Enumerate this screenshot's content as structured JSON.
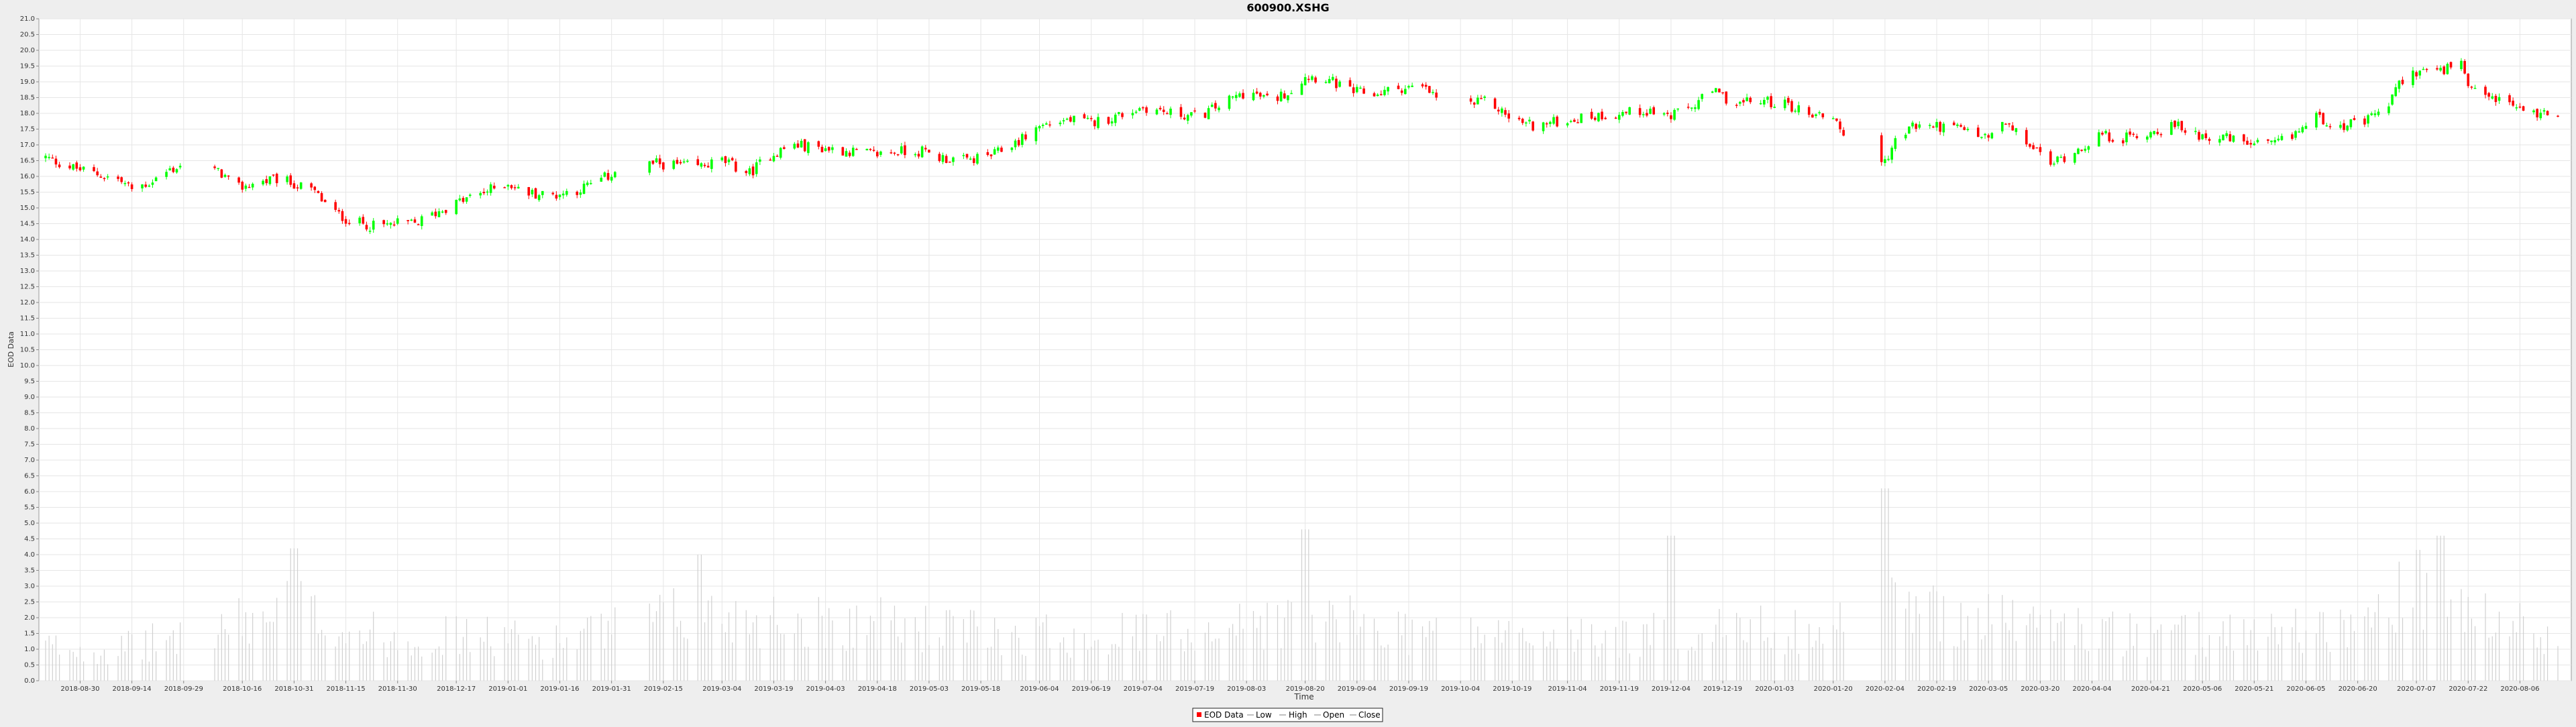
{
  "chart_data": {
    "type": "candlestick",
    "title": "600900.XSHG",
    "xlabel": "Time",
    "ylabel": "EOD Data",
    "ylim": [
      0,
      21
    ],
    "y_tick_step": 0.5,
    "x_range": [
      "2018-08-20",
      "2020-08-17"
    ],
    "x_ticks": [
      "2018-08-30",
      "2018-09-14",
      "2018-09-29",
      "2018-10-16",
      "2018-10-31",
      "2018-11-15",
      "2018-11-30",
      "2018-12-17",
      "2019-01-01",
      "2019-01-16",
      "2019-01-31",
      "2019-02-15",
      "2019-03-04",
      "2019-03-19",
      "2019-04-03",
      "2019-04-18",
      "2019-05-03",
      "2019-05-18",
      "2019-06-04",
      "2019-06-19",
      "2019-07-04",
      "2019-07-19",
      "2019-08-03",
      "2019-08-20",
      "2019-09-04",
      "2019-09-19",
      "2019-10-04",
      "2019-10-19",
      "2019-11-04",
      "2019-11-19",
      "2019-12-04",
      "2019-12-19",
      "2020-01-03",
      "2020-01-20",
      "2020-02-04",
      "2020-02-19",
      "2020-03-05",
      "2020-03-20",
      "2020-04-04",
      "2020-04-21",
      "2020-05-06",
      "2020-05-21",
      "2020-06-05",
      "2020-06-20",
      "2020-07-07",
      "2020-07-22",
      "2020-08-06"
    ],
    "close_path": [
      [
        "2018-08-20",
        16.6
      ],
      [
        "2018-08-27",
        16.3
      ],
      [
        "2018-09-03",
        16.1
      ],
      [
        "2018-09-10",
        15.9
      ],
      [
        "2018-09-14",
        15.6
      ],
      [
        "2018-09-19",
        15.8
      ],
      [
        "2018-09-25",
        16.2
      ],
      [
        "2018-09-30",
        16.4
      ],
      [
        "2018-10-10",
        16.1
      ],
      [
        "2018-10-14",
        15.6
      ],
      [
        "2018-10-20",
        15.8
      ],
      [
        "2018-10-26",
        15.9
      ],
      [
        "2018-10-30",
        15.8
      ],
      [
        "2018-11-06",
        15.5
      ],
      [
        "2018-11-11",
        14.9
      ],
      [
        "2018-11-16",
        14.6
      ],
      [
        "2018-11-24",
        14.4
      ],
      [
        "2018-11-30",
        14.5
      ],
      [
        "2018-12-05",
        14.5
      ],
      [
        "2018-12-12",
        14.9
      ],
      [
        "2018-12-18",
        15.2
      ],
      [
        "2018-12-25",
        15.5
      ],
      [
        "2019-01-01",
        15.8
      ],
      [
        "2019-01-05",
        15.5
      ],
      [
        "2019-01-14",
        15.4
      ],
      [
        "2019-01-22",
        15.6
      ],
      [
        "2019-01-30",
        16.0
      ],
      [
        "2019-02-04",
        16.4
      ],
      [
        "2019-02-14",
        16.4
      ],
      [
        "2019-02-25",
        16.3
      ],
      [
        "2019-03-04",
        16.5
      ],
      [
        "2019-03-12",
        16.1
      ],
      [
        "2019-03-18",
        16.7
      ],
      [
        "2019-03-25",
        17.0
      ],
      [
        "2019-04-02",
        16.9
      ],
      [
        "2019-04-10",
        16.8
      ],
      [
        "2019-04-17",
        16.7
      ],
      [
        "2019-04-24",
        16.8
      ],
      [
        "2019-05-01",
        16.8
      ],
      [
        "2019-05-06",
        16.6
      ],
      [
        "2019-05-14",
        16.5
      ],
      [
        "2019-05-22",
        16.7
      ],
      [
        "2019-05-30",
        17.2
      ],
      [
        "2019-06-04",
        17.6
      ],
      [
        "2019-06-12",
        17.8
      ],
      [
        "2019-06-19",
        17.7
      ],
      [
        "2019-06-26",
        17.9
      ],
      [
        "2019-07-04",
        18.2
      ],
      [
        "2019-07-12",
        18.0
      ],
      [
        "2019-07-20",
        17.9
      ],
      [
        "2019-07-27",
        18.3
      ],
      [
        "2019-08-03",
        18.7
      ],
      [
        "2019-08-10",
        18.4
      ],
      [
        "2019-08-17",
        18.8
      ],
      [
        "2019-08-20",
        19.2
      ],
      [
        "2019-08-26",
        19.1
      ],
      [
        "2019-09-02",
        18.7
      ],
      [
        "2019-09-09",
        18.6
      ],
      [
        "2019-09-16",
        18.8
      ],
      [
        "2019-09-23",
        18.8
      ],
      [
        "2019-09-30",
        18.3
      ],
      [
        "2019-10-04",
        18.2
      ],
      [
        "2019-10-12",
        18.4
      ],
      [
        "2019-10-19",
        17.8
      ],
      [
        "2019-10-26",
        17.6
      ],
      [
        "2019-11-04",
        17.8
      ],
      [
        "2019-11-11",
        17.9
      ],
      [
        "2019-11-19",
        18.0
      ],
      [
        "2019-11-27",
        18.1
      ],
      [
        "2019-12-04",
        17.9
      ],
      [
        "2019-12-10",
        18.2
      ],
      [
        "2019-12-16",
        18.7
      ],
      [
        "2019-12-23",
        18.3
      ],
      [
        "2019-12-30",
        18.4
      ],
      [
        "2020-01-06",
        18.3
      ],
      [
        "2020-01-13",
        18.0
      ],
      [
        "2020-01-20",
        17.9
      ],
      [
        "2020-01-23",
        17.4
      ],
      [
        "2020-02-03",
        16.3
      ],
      [
        "2020-02-07",
        17.1
      ],
      [
        "2020-02-12",
        17.6
      ],
      [
        "2020-02-19",
        17.6
      ],
      [
        "2020-02-26",
        17.5
      ],
      [
        "2020-03-05",
        17.2
      ],
      [
        "2020-03-09",
        17.7
      ],
      [
        "2020-03-16",
        17.1
      ],
      [
        "2020-03-23",
        16.4
      ],
      [
        "2020-03-30",
        16.8
      ],
      [
        "2020-04-06",
        17.3
      ],
      [
        "2020-04-13",
        17.2
      ],
      [
        "2020-04-21",
        17.4
      ],
      [
        "2020-04-28",
        17.6
      ],
      [
        "2020-05-06",
        17.3
      ],
      [
        "2020-05-13",
        17.2
      ],
      [
        "2020-05-21",
        17.0
      ],
      [
        "2020-05-27",
        17.0
      ],
      [
        "2020-06-01",
        17.3
      ],
      [
        "2020-06-08",
        17.9
      ],
      [
        "2020-06-15",
        17.6
      ],
      [
        "2020-06-22",
        17.7
      ],
      [
        "2020-06-29",
        18.3
      ],
      [
        "2020-07-03",
        19.1
      ],
      [
        "2020-07-09",
        19.4
      ],
      [
        "2020-07-14",
        19.3
      ],
      [
        "2020-07-20",
        19.6
      ],
      [
        "2020-07-22",
        18.7
      ],
      [
        "2020-07-29",
        18.5
      ],
      [
        "2020-08-05",
        18.2
      ],
      [
        "2020-08-10",
        18.0
      ],
      [
        "2020-08-17",
        18.0
      ]
    ],
    "gaps": [
      [
        "2018-10-01",
        "2018-10-07"
      ],
      [
        "2019-02-04",
        "2019-02-10"
      ],
      [
        "2019-09-30",
        "2019-10-06"
      ],
      [
        "2020-01-24",
        "2020-02-02"
      ]
    ],
    "volume_path": [
      [
        "2018-08-20",
        1.2
      ],
      [
        "2018-09-10",
        1.1
      ],
      [
        "2018-10-16",
        2.0
      ],
      [
        "2018-10-31",
        2.6
      ],
      [
        "2018-11-15",
        1.8
      ],
      [
        "2018-11-30",
        1.5
      ],
      [
        "2018-12-17",
        1.6
      ],
      [
        "2019-01-16",
        1.4
      ],
      [
        "2019-02-25",
        2.4
      ],
      [
        "2019-03-19",
        2.2
      ],
      [
        "2019-04-18",
        2.0
      ],
      [
        "2019-05-18",
        1.7
      ],
      [
        "2019-06-19",
        1.6
      ],
      [
        "2019-07-19",
        1.8
      ],
      [
        "2019-08-20",
        2.2
      ],
      [
        "2019-09-19",
        1.8
      ],
      [
        "2019-10-19",
        1.6
      ],
      [
        "2019-11-19",
        1.5
      ],
      [
        "2019-12-19",
        1.8
      ],
      [
        "2020-01-20",
        1.8
      ],
      [
        "2020-02-04",
        2.6
      ],
      [
        "2020-03-05",
        2.2
      ],
      [
        "2020-03-20",
        2.0
      ],
      [
        "2020-04-21",
        1.5
      ],
      [
        "2020-05-21",
        1.8
      ],
      [
        "2020-06-20",
        1.9
      ],
      [
        "2020-07-07",
        3.2
      ],
      [
        "2020-07-22",
        2.2
      ],
      [
        "2020-08-17",
        1.6
      ]
    ],
    "volume_spikes": [
      [
        "2018-10-31",
        4.2
      ],
      [
        "2019-02-25",
        4.0
      ],
      [
        "2019-08-20",
        4.8
      ],
      [
        "2019-12-04",
        4.6
      ],
      [
        "2020-02-04",
        6.1
      ],
      [
        "2020-07-14",
        4.6
      ]
    ],
    "legend": [
      {
        "label": "EOD Data",
        "color": "#ff0000"
      },
      {
        "label": "Low",
        "color": "#c0c0c0"
      },
      {
        "label": "High",
        "color": "#c0c0c0"
      },
      {
        "label": "Open",
        "color": "#c0c0c0"
      },
      {
        "label": "Close",
        "color": "#c0c0c0"
      }
    ],
    "legend_position": "bottom",
    "grid": true,
    "colors": {
      "up": "#00ff00",
      "down": "#ff0000",
      "volume": "#d0d0d0",
      "plot_bg": "#ffffff",
      "page_bg": "#eeeeee"
    }
  }
}
